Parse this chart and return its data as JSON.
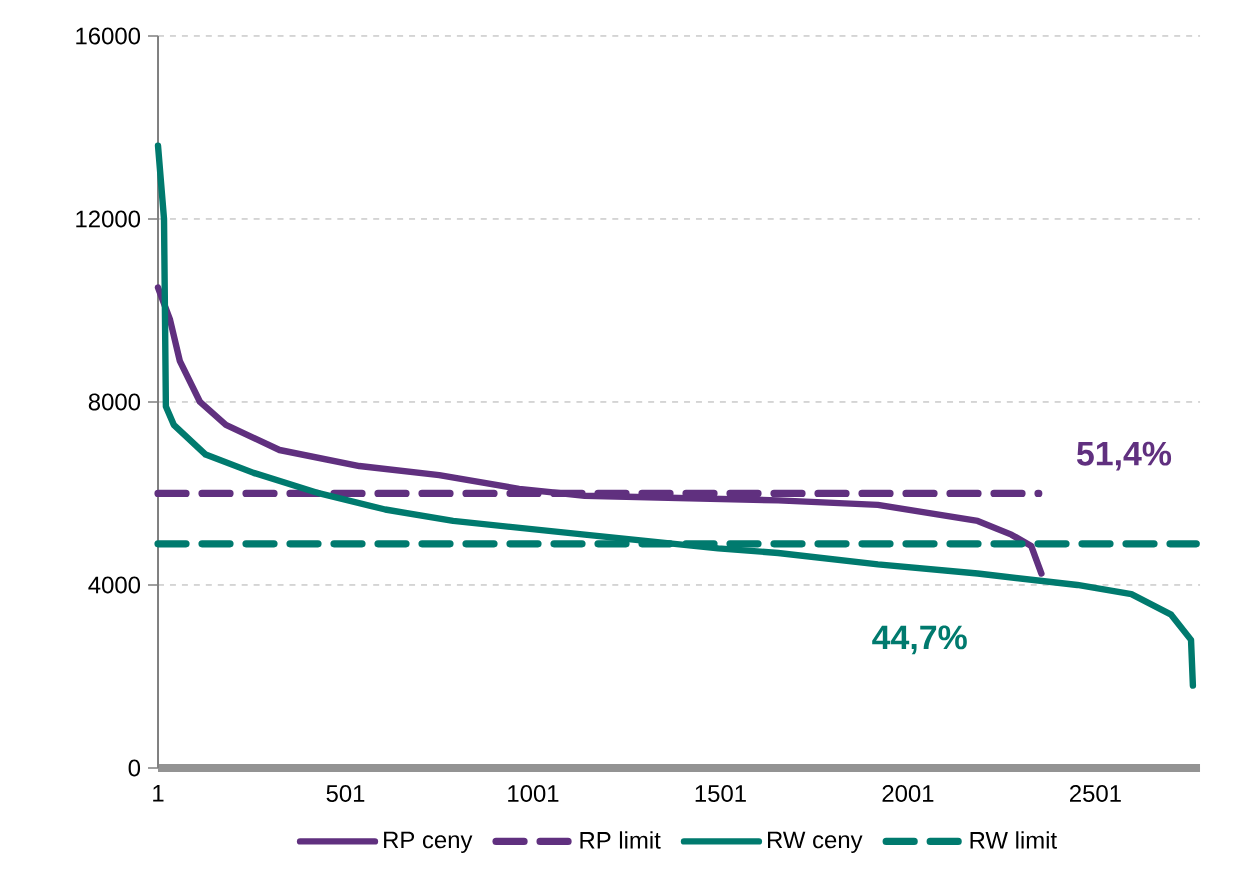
{
  "chart_data": {
    "type": "line",
    "xlim": [
      1,
      2780
    ],
    "xticks": [
      1,
      501,
      1001,
      1501,
      2001,
      2501
    ],
    "ylim": [
      0,
      16000
    ],
    "yticks": [
      0,
      4000,
      8000,
      12000,
      16000
    ],
    "grid": "y",
    "legend": "bottom",
    "marker": "none",
    "series": [
      {
        "name": "RP ceny",
        "color": "#60307f",
        "line_style": "solid",
        "x": [
          1,
          33,
          59,
          113,
          182,
          325,
          538,
          751,
          964,
          1139,
          1389,
          1655,
          1921,
          2187,
          2277,
          2330,
          2357
        ],
        "values": [
          10500,
          9800,
          8900,
          8000,
          7500,
          6950,
          6600,
          6400,
          6100,
          5950,
          5900,
          5850,
          5750,
          5400,
          5100,
          4850,
          4250
        ]
      },
      {
        "name": "RP limit",
        "color": "#60307f",
        "line_style": "dashed",
        "x": [
          1,
          2350
        ],
        "values": [
          6000,
          6000
        ]
      },
      {
        "name": "RW ceny",
        "color": "#007a6e",
        "line_style": "solid",
        "x": [
          1,
          17,
          22,
          43,
          128,
          256,
          432,
          607,
          788,
          1139,
          1495,
          1655,
          1921,
          2187,
          2453,
          2597,
          2703,
          2756,
          2761
        ],
        "values": [
          13600,
          12000,
          7900,
          7500,
          6850,
          6450,
          6000,
          5650,
          5400,
          5100,
          4800,
          4700,
          4450,
          4250,
          4000,
          3800,
          3350,
          2800,
          1800
        ]
      },
      {
        "name": "RW limit",
        "color": "#007a6e",
        "line_style": "dashed",
        "x": [
          1,
          2770
        ],
        "values": [
          4900,
          4900
        ]
      }
    ],
    "annotations": [
      "51,4%",
      "44,7%"
    ]
  }
}
